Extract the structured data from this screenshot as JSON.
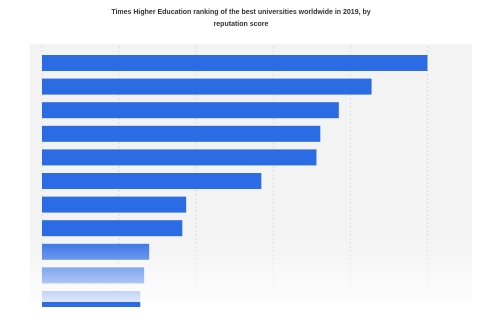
{
  "chart_data": {
    "type": "bar",
    "orientation": "horizontal",
    "title": "Times Higher Education ranking of the best universities worldwide in 2019, by reputation score",
    "values": [
      100,
      85.5,
      77,
      72.2,
      71.2,
      56.9,
      37.4,
      36.4,
      27.8,
      26.5,
      25.5
    ],
    "color": "#2b6be3",
    "xlim": [
      0,
      110
    ],
    "xticks": [
      0,
      20,
      40,
      60,
      80,
      100
    ],
    "grid": true
  }
}
